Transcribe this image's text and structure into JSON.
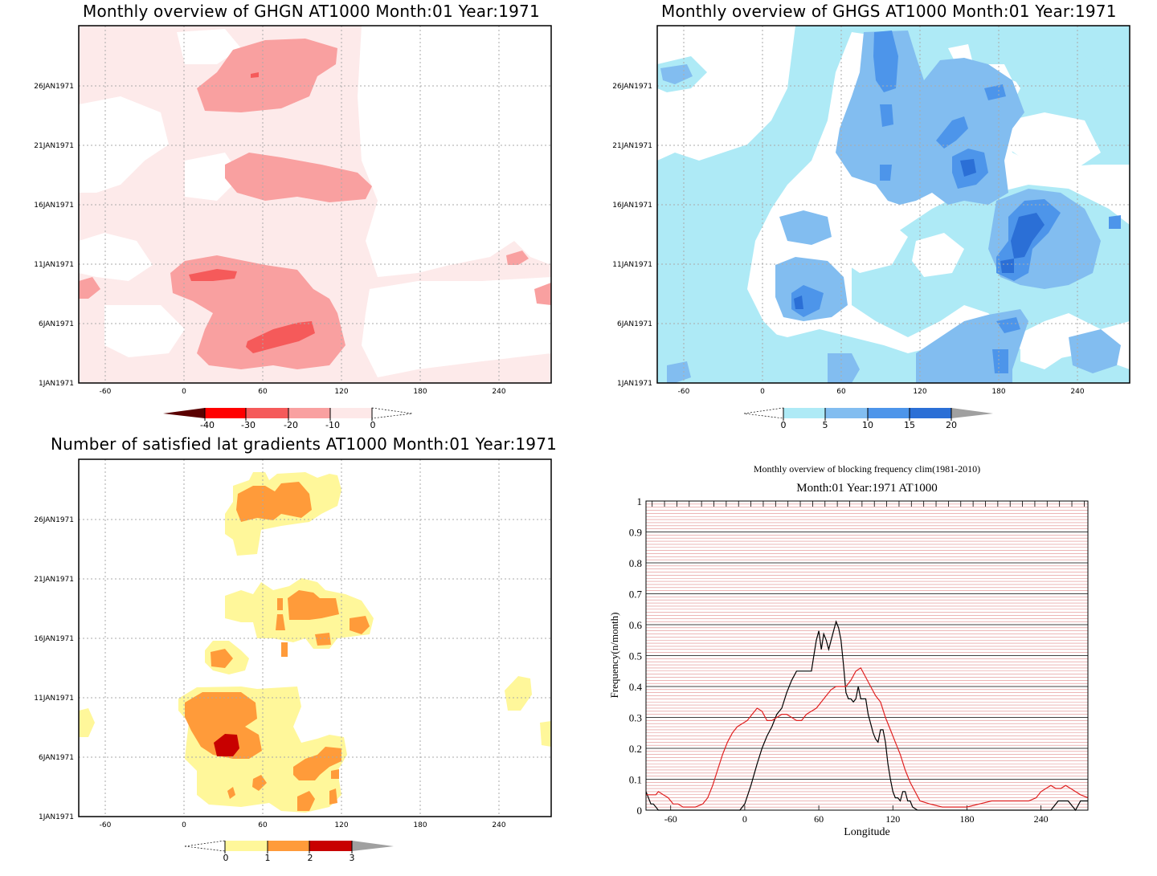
{
  "panels": [
    {
      "id": "ghgn",
      "title": "Monthly overview of GHGN AT1000 Month:01 Year:1971",
      "xticks": [
        "-60",
        "0",
        "60",
        "120",
        "180",
        "240"
      ],
      "yticks": [
        "1JAN1971",
        "6JAN1971",
        "11JAN1971",
        "16JAN1971",
        "21JAN1971",
        "26JAN1971"
      ],
      "colorbar": {
        "labels": [
          "-40",
          "-30",
          "-20",
          "-10",
          "0"
        ],
        "colors": [
          "#5a0000",
          "#ff0000",
          "#f55a5a",
          "#f9a0a0",
          "#fde8e8"
        ]
      }
    },
    {
      "id": "ghgs",
      "title": "Monthly overview of GHGS AT1000 Month:01 Year:1971",
      "xticks": [
        "-60",
        "0",
        "60",
        "120",
        "180",
        "240"
      ],
      "yticks": [
        "1JAN1971",
        "6JAN1971",
        "11JAN1971",
        "16JAN1971",
        "21JAN1971",
        "26JAN1971"
      ],
      "colorbar": {
        "labels": [
          "0",
          "5",
          "10",
          "15",
          "20"
        ],
        "colors": [
          "#aeeaf6",
          "#82bdf0",
          "#4d95ea",
          "#2b6fd6",
          "#a0a0a0"
        ]
      }
    },
    {
      "id": "nsat",
      "title": "Number of satisfied lat gradients AT1000 Month:01 Year:1971",
      "xticks": [
        "-60",
        "0",
        "60",
        "120",
        "180",
        "240"
      ],
      "yticks": [
        "1JAN1971",
        "6JAN1971",
        "11JAN1971",
        "16JAN1971",
        "21JAN1971",
        "26JAN1971"
      ],
      "colorbar": {
        "labels": [
          "0",
          "1",
          "2",
          "3"
        ],
        "colors": [
          "#fff79a",
          "#ff9b3a",
          "#c80000",
          "#a0a0a0"
        ]
      }
    }
  ],
  "line_panel": {
    "title": "Monthly overview of blocking frequency clim(1981-2010)",
    "subtitle": "Month:01 Year:1971  AT1000",
    "xlabel": "Longitude",
    "ylabel": "Frequency(n/month)"
  },
  "chart_data": [
    {
      "type": "heatmap",
      "title": "Monthly overview of GHGN AT1000 Month:01 Year:1971",
      "x_range": [
        -80,
        280
      ],
      "x_ticks": [
        -60,
        0,
        60,
        120,
        180,
        240
      ],
      "y_ticks": [
        "1JAN1971",
        "6JAN1971",
        "11JAN1971",
        "16JAN1971",
        "21JAN1971",
        "26JAN1971"
      ],
      "levels": [
        -40,
        -30,
        -20,
        -10,
        0
      ],
      "colors": {
        "band_-10_0": "#fde8e8",
        "band_-20_-10": "#f9a0a0",
        "band_-30_-20": "#f55a5a",
        "band_-40_-30": "#ff0000",
        "below_-40": "#5a0000"
      }
    },
    {
      "type": "heatmap",
      "title": "Monthly overview of GHGS AT1000 Month:01 Year:1971",
      "x_range": [
        -80,
        280
      ],
      "x_ticks": [
        -60,
        0,
        60,
        120,
        180,
        240
      ],
      "y_ticks": [
        "1JAN1971",
        "6JAN1971",
        "11JAN1971",
        "16JAN1971",
        "21JAN1971",
        "26JAN1971"
      ],
      "levels": [
        0,
        5,
        10,
        15,
        20
      ],
      "colors": {
        "band_0_5": "#aeeaf6",
        "band_5_10": "#82bdf0",
        "band_10_15": "#4d95ea",
        "band_15_20": "#2b6fd6",
        "above_20": "#a0a0a0"
      }
    },
    {
      "type": "heatmap",
      "title": "Number of satisfied lat gradients AT1000 Month:01 Year:1971",
      "x_range": [
        -80,
        280
      ],
      "x_ticks": [
        -60,
        0,
        60,
        120,
        180,
        240
      ],
      "y_ticks": [
        "1JAN1971",
        "6JAN1971",
        "11JAN1971",
        "16JAN1971",
        "21JAN1971",
        "26JAN1971"
      ],
      "levels": [
        0,
        1,
        2,
        3
      ],
      "colors": {
        "band_0_1": "#fff79a",
        "band_1_2": "#ff9b3a",
        "band_2_3": "#c80000",
        "above_3": "#a0a0a0"
      }
    },
    {
      "type": "line",
      "title": "Monthly overview of blocking frequency clim(1981-2010)",
      "subtitle": "Month:01 Year:1971  AT1000",
      "xlabel": "Longitude",
      "ylabel": "Frequency(n/month)",
      "xlim": [
        -80,
        278
      ],
      "ylim": [
        0,
        1
      ],
      "x_ticks": [
        -60,
        0,
        60,
        120,
        180,
        240
      ],
      "y_ticks": [
        0,
        0.1,
        0.2,
        0.3,
        0.4,
        0.5,
        0.6,
        0.7,
        0.8,
        0.9,
        1
      ],
      "series": [
        {
          "color": "#000000",
          "x": [
            -80,
            -76,
            -74,
            -70,
            -68,
            -66,
            -60,
            -50,
            -40,
            -30,
            -20,
            -10,
            -4,
            0,
            5,
            10,
            14,
            18,
            22,
            26,
            30,
            34,
            38,
            42,
            46,
            50,
            54,
            56,
            58,
            60,
            62,
            64,
            66,
            68,
            70,
            72,
            74,
            76,
            78,
            80,
            82,
            84,
            86,
            88,
            90,
            92,
            94,
            96,
            98,
            100,
            102,
            104,
            106,
            108,
            110,
            112,
            114,
            116,
            118,
            120,
            122,
            124,
            126,
            128,
            130,
            132,
            134,
            136,
            140,
            150,
            160,
            180,
            200,
            220,
            230,
            240,
            244,
            248,
            254,
            258,
            262,
            268,
            272,
            278
          ],
          "y": [
            0.06,
            0.02,
            0.02,
            0.0,
            0.0,
            0.0,
            0.0,
            0.0,
            0.0,
            0.0,
            0.0,
            0.0,
            0.0,
            0.02,
            0.08,
            0.15,
            0.2,
            0.24,
            0.27,
            0.31,
            0.33,
            0.38,
            0.42,
            0.45,
            0.45,
            0.45,
            0.45,
            0.5,
            0.55,
            0.58,
            0.52,
            0.57,
            0.55,
            0.52,
            0.55,
            0.58,
            0.61,
            0.59,
            0.55,
            0.47,
            0.38,
            0.36,
            0.36,
            0.35,
            0.36,
            0.4,
            0.36,
            0.36,
            0.36,
            0.31,
            0.28,
            0.25,
            0.23,
            0.22,
            0.26,
            0.26,
            0.22,
            0.15,
            0.1,
            0.06,
            0.04,
            0.04,
            0.03,
            0.06,
            0.06,
            0.03,
            0.03,
            0.01,
            0.0,
            0.0,
            0.0,
            0.0,
            0.0,
            0.0,
            0.0,
            0.0,
            0.0,
            0.0,
            0.03,
            0.03,
            0.03,
            0.0,
            0.03,
            0.03
          ]
        },
        {
          "color": "#e02020",
          "x": [
            -80,
            -76,
            -72,
            -70,
            -66,
            -62,
            -58,
            -54,
            -50,
            -46,
            -40,
            -34,
            -30,
            -26,
            -22,
            -18,
            -14,
            -10,
            -6,
            -2,
            2,
            6,
            10,
            14,
            18,
            22,
            26,
            30,
            34,
            38,
            42,
            46,
            50,
            54,
            58,
            62,
            66,
            70,
            74,
            78,
            82,
            86,
            90,
            94,
            98,
            102,
            106,
            110,
            114,
            118,
            122,
            126,
            130,
            134,
            138,
            142,
            150,
            160,
            170,
            180,
            190,
            200,
            210,
            220,
            230,
            236,
            240,
            244,
            248,
            252,
            256,
            260,
            264,
            268,
            272,
            278
          ],
          "y": [
            0.05,
            0.05,
            0.05,
            0.06,
            0.05,
            0.04,
            0.02,
            0.02,
            0.01,
            0.01,
            0.01,
            0.02,
            0.04,
            0.08,
            0.13,
            0.18,
            0.22,
            0.25,
            0.27,
            0.28,
            0.29,
            0.31,
            0.33,
            0.32,
            0.29,
            0.29,
            0.3,
            0.31,
            0.31,
            0.3,
            0.29,
            0.29,
            0.31,
            0.32,
            0.33,
            0.35,
            0.37,
            0.39,
            0.4,
            0.4,
            0.4,
            0.42,
            0.45,
            0.46,
            0.43,
            0.4,
            0.37,
            0.35,
            0.3,
            0.26,
            0.22,
            0.18,
            0.13,
            0.09,
            0.06,
            0.03,
            0.02,
            0.01,
            0.01,
            0.01,
            0.02,
            0.03,
            0.03,
            0.03,
            0.03,
            0.04,
            0.06,
            0.07,
            0.08,
            0.07,
            0.07,
            0.08,
            0.07,
            0.06,
            0.05,
            0.04
          ]
        }
      ]
    }
  ]
}
